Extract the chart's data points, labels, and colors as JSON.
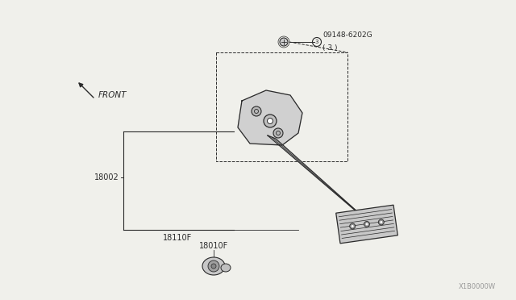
{
  "bg_color": "#f0f0eb",
  "line_color": "#2a2a2a",
  "watermark": "X1B0000W",
  "label_part": "09148-6202G",
  "label_part2": "( 3 )",
  "label_18002": "18002",
  "label_18110F": "18110F",
  "label_18010F": "18010F",
  "front_label": "FRONT",
  "fig_w": 6.4,
  "fig_h": 3.72,
  "dpi": 100
}
